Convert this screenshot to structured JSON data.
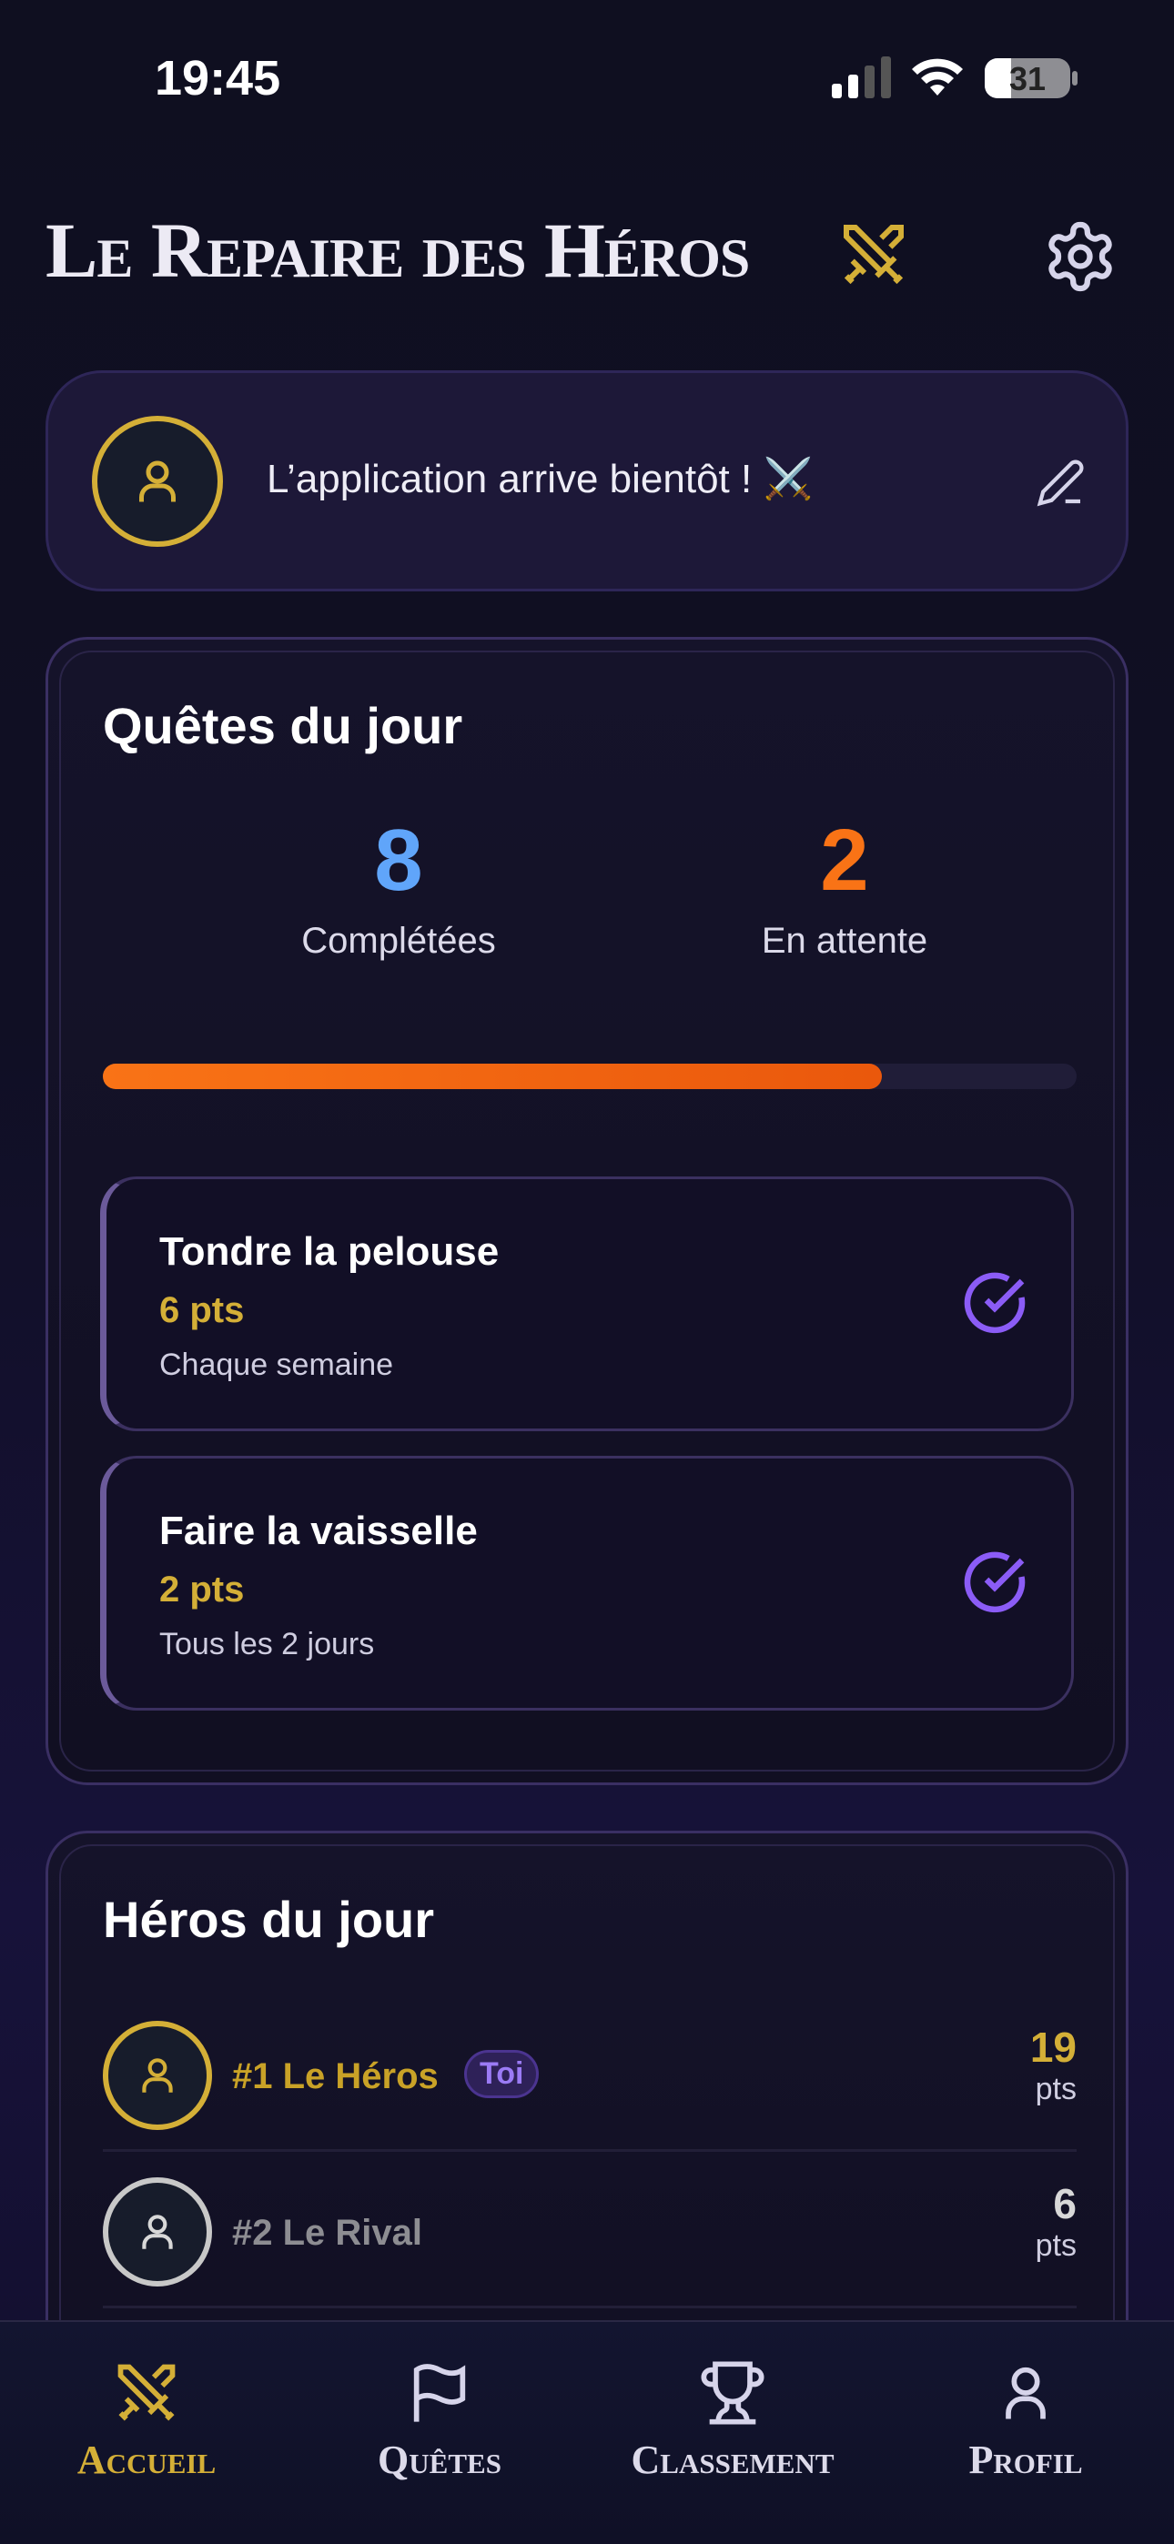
{
  "status_bar": {
    "time": "19:45",
    "battery": "31"
  },
  "header": {
    "title": "Le Repaire des Héros",
    "title_icon": "crossed-swords-icon",
    "settings_icon": "gear-icon"
  },
  "banner": {
    "message": "L’application arrive bientôt ! ⚔️",
    "edit_icon": "pencil-icon"
  },
  "daily_quests": {
    "title": "Quêtes du jour",
    "completed_count": "8",
    "completed_label": "Complétées",
    "pending_count": "2",
    "pending_label": "En attente",
    "progress_percent": 80,
    "items": [
      {
        "name": "Tondre la pelouse",
        "points": "6 pts",
        "frequency": "Chaque semaine"
      },
      {
        "name": "Faire la vaisselle",
        "points": "2 pts",
        "frequency": "Tous les 2 jours"
      }
    ]
  },
  "heroes": {
    "title": "Héros du jour",
    "rows": [
      {
        "rank_name": "#1 Le Héros",
        "badge": "Toi",
        "points": "19",
        "unit": "pts"
      },
      {
        "rank_name": "#2 Le Rival",
        "points": "6",
        "unit": "pts"
      }
    ]
  },
  "nav": {
    "items": [
      {
        "label": "Accueil"
      },
      {
        "label": "Quêtes"
      },
      {
        "label": "Classement"
      },
      {
        "label": "Profil"
      }
    ],
    "active": "Accueil"
  },
  "colors": {
    "gold": "#d4af37",
    "blue": "#60a5fa",
    "orange": "#f97316",
    "purple": "#8b5cf6"
  }
}
